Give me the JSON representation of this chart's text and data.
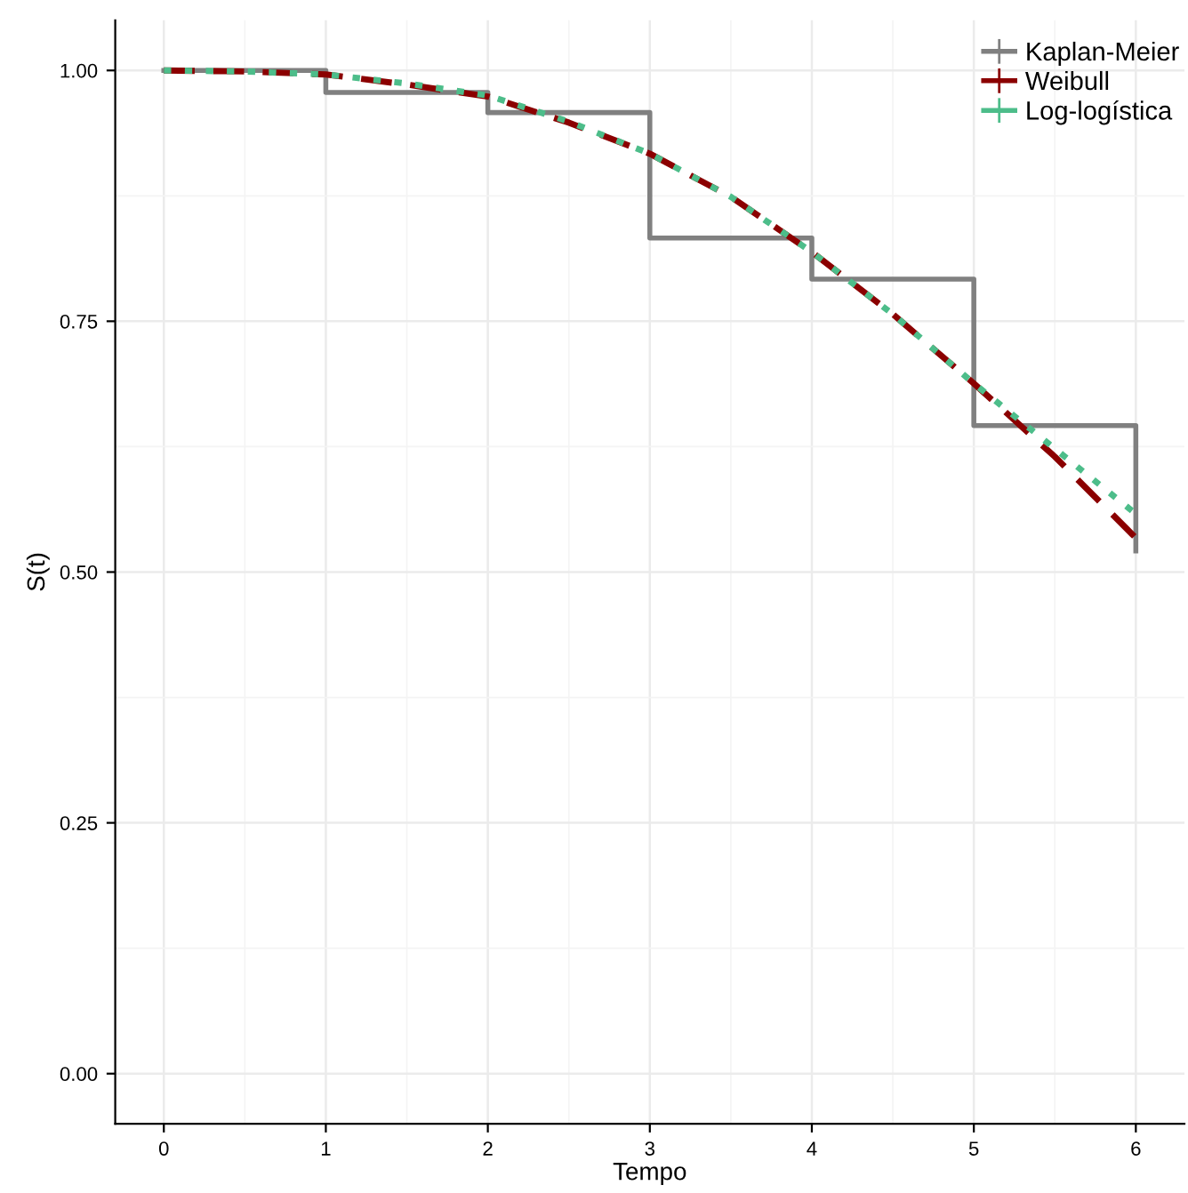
{
  "chart_data": {
    "type": "line",
    "xlabel": "Tempo",
    "ylabel": "S(t)",
    "xlim": [
      -0.3,
      6.3
    ],
    "ylim": [
      -0.05,
      1.05
    ],
    "xticks": [
      0,
      1,
      2,
      3,
      4,
      5,
      6
    ],
    "yticks": [
      {
        "value": 0,
        "label": "0.00"
      },
      {
        "value": 0.25,
        "label": "0.25"
      },
      {
        "value": 0.5,
        "label": "0.50"
      },
      {
        "value": 0.75,
        "label": "0.75"
      },
      {
        "value": 1,
        "label": "1.00"
      }
    ],
    "grid": true,
    "legend": "top right",
    "series": [
      {
        "name": "Kaplan-Meier",
        "type": "step",
        "color": "#808080",
        "x": [
          0,
          1,
          2,
          3,
          4,
          5,
          6
        ],
        "values": [
          1,
          0.978,
          0.958,
          0.833,
          0.792,
          0.646,
          0.521
        ]
      },
      {
        "name": "Weibull",
        "color": "#8b0000",
        "line_style": "dashed",
        "x": [
          0,
          0.5,
          1,
          1.5,
          2,
          2.5,
          3,
          3.5,
          4,
          4.5,
          5,
          5.5,
          6
        ],
        "values": [
          1,
          0.999,
          0.996,
          0.986,
          0.974,
          0.948,
          0.917,
          0.874,
          0.819,
          0.757,
          0.688,
          0.615,
          0.534
        ]
      },
      {
        "name": "Log-logística",
        "color": "#4dbd8a",
        "line_style": "dotted",
        "x": [
          0,
          0.5,
          1,
          1.5,
          2,
          2.5,
          3,
          3.5,
          4,
          4.5,
          5,
          5.5,
          6
        ],
        "values": [
          1,
          0.999,
          0.996,
          0.987,
          0.975,
          0.949,
          0.917,
          0.874,
          0.819,
          0.757,
          0.688,
          0.623,
          0.558
        ]
      }
    ]
  }
}
